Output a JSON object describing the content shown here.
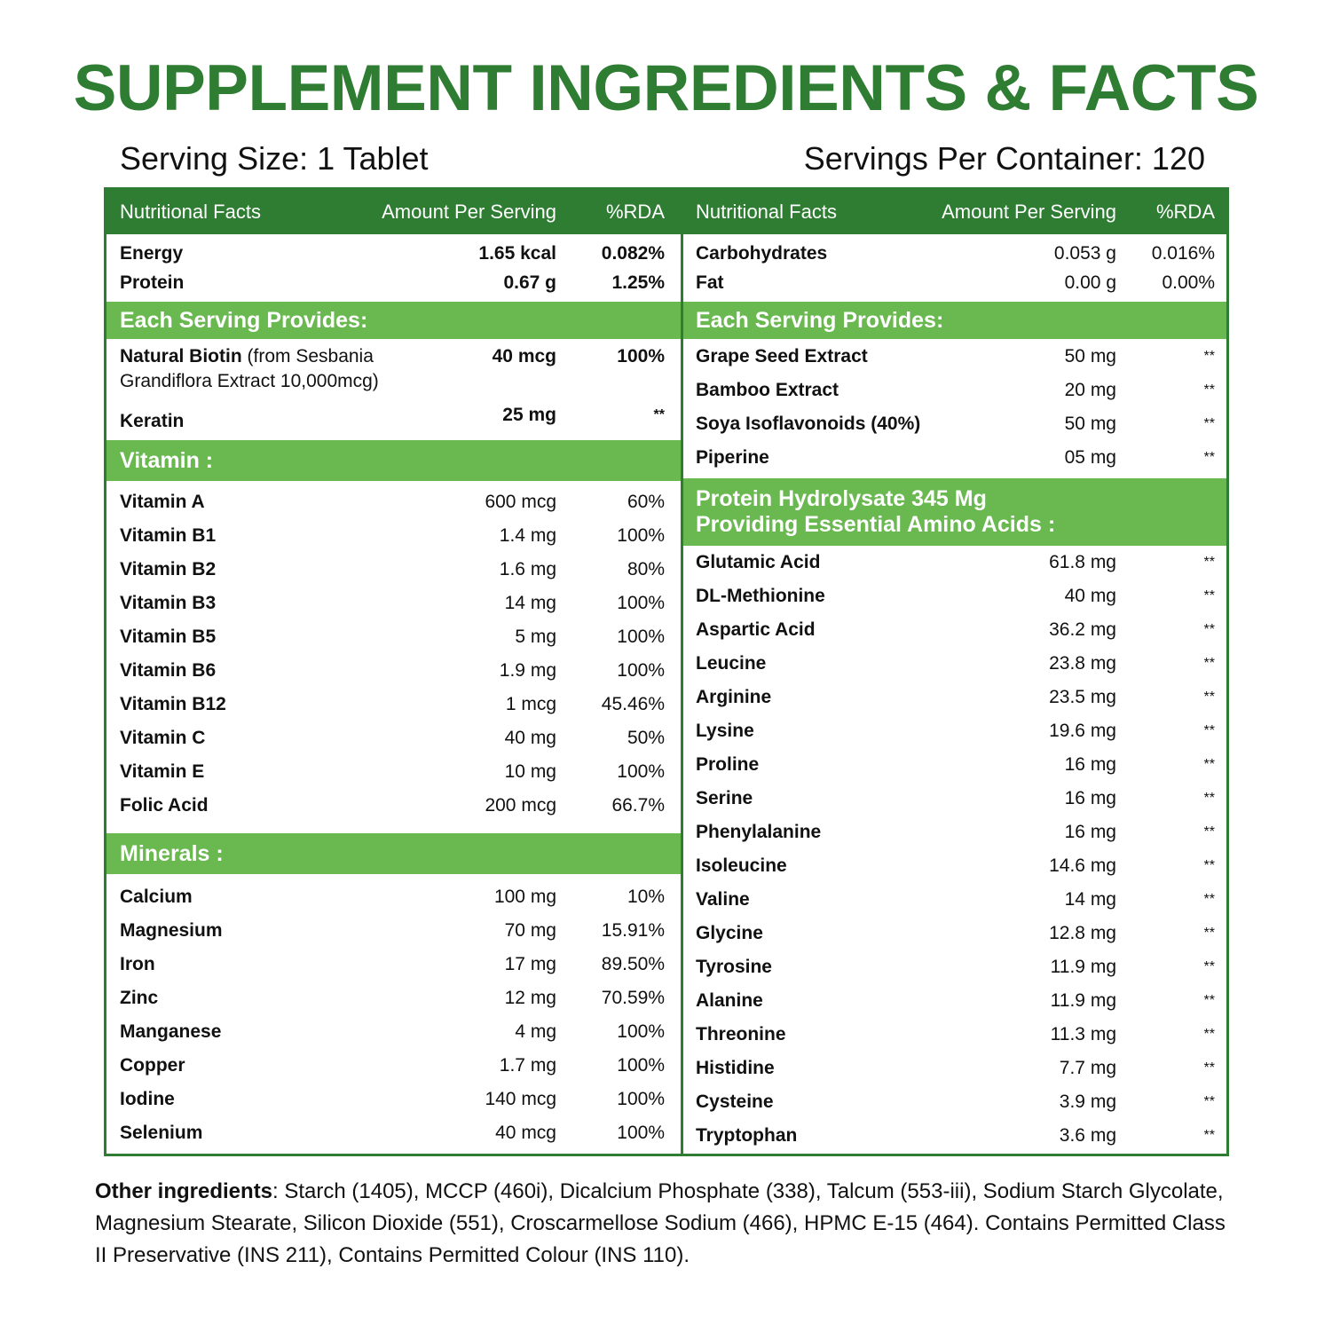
{
  "title": "SUPPLEMENT INGREDIENTS & FACTS",
  "serving_size": "Serving Size: 1 Tablet",
  "servings_per_container": "Servings Per Container: 120",
  "colors": {
    "dark_green": "#2e7d32",
    "light_green": "#6ab850"
  },
  "headers": {
    "name": "Nutritional Facts",
    "amount": "Amount Per Serving",
    "rda": "%RDA"
  },
  "left": {
    "basic": [
      {
        "name": "Energy",
        "amount": "1.65 kcal",
        "rda": "0.082%"
      },
      {
        "name": "Protein",
        "amount": "0.67 g",
        "rda": "1.25%"
      }
    ],
    "provides_title": "Each Serving Provides:",
    "biotin": {
      "name": "Natural Biotin",
      "extra": " (from Sesbania Grandiflora Extract 10,000mcg)",
      "amount": "40 mcg",
      "rda": "100%"
    },
    "keratin": {
      "name": "Keratin",
      "amount": "25 mg",
      "rda": "**"
    },
    "vitamin_title": "Vitamin :",
    "vitamins": [
      {
        "name": "Vitamin A",
        "amount": "600 mcg",
        "rda": "60%"
      },
      {
        "name": "Vitamin B1",
        "amount": "1.4 mg",
        "rda": "100%"
      },
      {
        "name": "Vitamin B2",
        "amount": "1.6 mg",
        "rda": "80%"
      },
      {
        "name": "Vitamin B3",
        "amount": "14 mg",
        "rda": "100%"
      },
      {
        "name": "Vitamin B5",
        "amount": "5 mg",
        "rda": "100%"
      },
      {
        "name": "Vitamin B6",
        "amount": "1.9 mg",
        "rda": "100%"
      },
      {
        "name": "Vitamin B12",
        "amount": "1 mcg",
        "rda": "45.46%"
      },
      {
        "name": "Vitamin C",
        "amount": "40 mg",
        "rda": "50%"
      },
      {
        "name": "Vitamin E",
        "amount": "10 mg",
        "rda": "100%"
      },
      {
        "name": "Folic Acid",
        "amount": "200 mcg",
        "rda": "66.7%"
      }
    ],
    "minerals_title": "Minerals :",
    "minerals": [
      {
        "name": "Calcium",
        "amount": "100 mg",
        "rda": "10%"
      },
      {
        "name": "Magnesium",
        "amount": "70 mg",
        "rda": "15.91%"
      },
      {
        "name": "Iron",
        "amount": "17 mg",
        "rda": "89.50%"
      },
      {
        "name": "Zinc",
        "amount": "12 mg",
        "rda": "70.59%"
      },
      {
        "name": "Manganese",
        "amount": "4 mg",
        "rda": "100%"
      },
      {
        "name": "Copper",
        "amount": "1.7 mg",
        "rda": "100%"
      },
      {
        "name": "Iodine",
        "amount": "140 mcg",
        "rda": "100%"
      },
      {
        "name": "Selenium",
        "amount": "40 mcg",
        "rda": "100%"
      }
    ]
  },
  "right": {
    "basic": [
      {
        "name": "Carbohydrates",
        "amount": "0.053 g",
        "rda": "0.016%"
      },
      {
        "name": "Fat",
        "amount": "0.00 g",
        "rda": "0.00%"
      }
    ],
    "provides_title": "Each Serving Provides:",
    "extracts": [
      {
        "name": "Grape Seed Extract",
        "amount": "50 mg",
        "rda": "**"
      },
      {
        "name": "Bamboo Extract",
        "amount": "20 mg",
        "rda": "**"
      },
      {
        "name": "Soya Isoflavonoids (40%)",
        "amount": "50 mg",
        "rda": "**"
      },
      {
        "name": "Piperine",
        "amount": "05 mg",
        "rda": "**"
      }
    ],
    "protein_title_1": "Protein Hydrolysate 345 Mg",
    "protein_title_2": "Providing Essential Amino Acids :",
    "amino_acids": [
      {
        "name": "Glutamic Acid",
        "amount": "61.8 mg",
        "rda": "**"
      },
      {
        "name": "DL-Methionine",
        "amount": "40 mg",
        "rda": "**"
      },
      {
        "name": "Aspartic Acid",
        "amount": "36.2 mg",
        "rda": "**"
      },
      {
        "name": "Leucine",
        "amount": "23.8 mg",
        "rda": "**"
      },
      {
        "name": "Arginine",
        "amount": "23.5 mg",
        "rda": "**"
      },
      {
        "name": "Lysine",
        "amount": "19.6 mg",
        "rda": "**"
      },
      {
        "name": "Proline",
        "amount": "16 mg",
        "rda": "**"
      },
      {
        "name": "Serine",
        "amount": "16 mg",
        "rda": "**"
      },
      {
        "name": "Phenylalanine",
        "amount": "16 mg",
        "rda": "**"
      },
      {
        "name": "Isoleucine",
        "amount": "14.6 mg",
        "rda": "**"
      },
      {
        "name": "Valine",
        "amount": "14 mg",
        "rda": "**"
      },
      {
        "name": "Glycine",
        "amount": "12.8 mg",
        "rda": "**"
      },
      {
        "name": "Tyrosine",
        "amount": "11.9 mg",
        "rda": "**"
      },
      {
        "name": "Alanine",
        "amount": "11.9 mg",
        "rda": "**"
      },
      {
        "name": "Threonine",
        "amount": "11.3 mg",
        "rda": "**"
      },
      {
        "name": "Histidine",
        "amount": "7.7 mg",
        "rda": "**"
      },
      {
        "name": "Cysteine",
        "amount": "3.9 mg",
        "rda": "**"
      },
      {
        "name": "Tryptophan",
        "amount": "3.6 mg",
        "rda": "**"
      }
    ]
  },
  "other_ingredients": {
    "label": "Other ingredients",
    "text": ": Starch (1405), MCCP (460i), Dicalcium Phosphate (338), Talcum (553-iii), Sodium Starch Glycolate, Magnesium Stearate, Silicon Dioxide (551), Croscarmellose Sodium (466), HPMC E-15 (464). Contains Permitted Class II Preservative (INS 211), Contains Permitted Colour (INS 110)."
  }
}
